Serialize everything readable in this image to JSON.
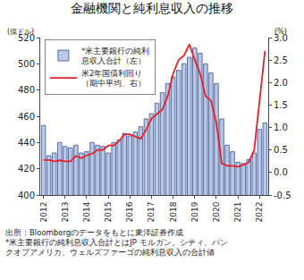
{
  "chart_data": {
    "type": "bar",
    "title": "金融機関と純利息収入の推移",
    "y_label": "(億ドル)",
    "y2_label": "(%)",
    "categories": [
      "2012",
      null,
      null,
      null,
      "2013",
      null,
      null,
      null,
      "2014",
      null,
      null,
      null,
      "2015",
      null,
      null,
      null,
      "2016",
      null,
      null,
      null,
      "2017",
      null,
      null,
      null,
      "2018",
      null,
      null,
      null,
      "2019",
      null,
      null,
      null,
      "2020",
      null,
      null,
      null,
      "2021",
      null,
      null,
      null,
      "2022",
      null
    ],
    "series": [
      {
        "name": "*米主要銀行の純利\n息収入合計（左）",
        "type": "bar",
        "color": "#b9c8e8",
        "marker": "outlined",
        "values": [
          453,
          430,
          432,
          440,
          437,
          436,
          438,
          432,
          433,
          440,
          438,
          437,
          432,
          440,
          442,
          447,
          445,
          448,
          452,
          458,
          462,
          470,
          478,
          485,
          490,
          495,
          500,
          505,
          512,
          508,
          500,
          493,
          485,
          458,
          438,
          433,
          425,
          424,
          427,
          432,
          450,
          455
        ]
      },
      {
        "name": "米2年国債利回り\n（期中平均、右）",
        "type": "line",
        "color": "#e8202a",
        "axis": "y2",
        "line_style": "solid",
        "values": [
          0.28,
          0.28,
          0.25,
          0.27,
          0.25,
          0.25,
          0.37,
          0.32,
          0.38,
          0.42,
          0.5,
          0.5,
          0.6,
          0.6,
          0.7,
          0.85,
          0.85,
          0.8,
          0.75,
          0.95,
          1.2,
          1.3,
          1.4,
          1.7,
          2.2,
          2.5,
          2.6,
          2.85,
          2.5,
          2.2,
          1.7,
          1.6,
          1.1,
          0.2,
          0.15,
          0.15,
          0.13,
          0.17,
          0.23,
          0.5,
          1.6,
          2.7
        ]
      }
    ],
    "ylim": [
      400,
      520
    ],
    "yticks": [
      400,
      420,
      440,
      460,
      480,
      500,
      520
    ],
    "y2lim": [
      -0.5,
      3.0
    ],
    "y2ticks": [
      {
        "value": -0.5,
        "label": "-0.5"
      },
      {
        "value": 0,
        "label": "0.0"
      },
      0.5,
      {
        "value": 1,
        "label": "1.0"
      },
      1.5,
      {
        "value": 2,
        "label": "2.0"
      },
      2.5,
      {
        "value": 3,
        "label": "3.0"
      }
    ],
    "grid": false,
    "legend": "top-left",
    "notes": [
      "出所：Bloombergのデータをもとに東洋証券作成",
      "*米主要銀行の純利息収入合計とはJP モルガン、シティ、バン",
      "クオブアメリカ、ウェルズファーゴの純利息収入の合計値"
    ]
  }
}
